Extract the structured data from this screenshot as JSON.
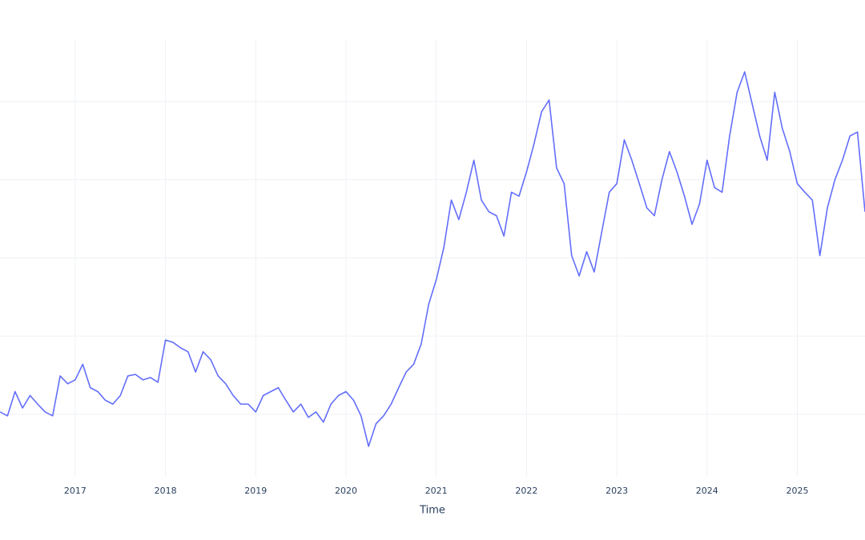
{
  "chart_data": {
    "type": "line",
    "x_label": "Time",
    "x": [
      "2016-03",
      "2016-04",
      "2016-05",
      "2016-06",
      "2016-07",
      "2016-08",
      "2016-09",
      "2016-10",
      "2016-11",
      "2016-12",
      "2017-01",
      "2017-02",
      "2017-03",
      "2017-04",
      "2017-05",
      "2017-06",
      "2017-07",
      "2017-08",
      "2017-09",
      "2017-10",
      "2017-11",
      "2017-12",
      "2018-01",
      "2018-02",
      "2018-03",
      "2018-04",
      "2018-05",
      "2018-06",
      "2018-07",
      "2018-08",
      "2018-09",
      "2018-10",
      "2018-11",
      "2018-12",
      "2019-01",
      "2019-02",
      "2019-03",
      "2019-04",
      "2019-05",
      "2019-06",
      "2019-07",
      "2019-08",
      "2019-09",
      "2019-10",
      "2019-11",
      "2019-12",
      "2020-01",
      "2020-02",
      "2020-03",
      "2020-04",
      "2020-05",
      "2020-06",
      "2020-07",
      "2020-08",
      "2020-09",
      "2020-10",
      "2020-11",
      "2020-12",
      "2021-01",
      "2021-02",
      "2021-03",
      "2021-04",
      "2021-05",
      "2021-06",
      "2021-07",
      "2021-08",
      "2021-09",
      "2021-10",
      "2021-11",
      "2021-12",
      "2022-01",
      "2022-02",
      "2022-03",
      "2022-04",
      "2022-05",
      "2022-06",
      "2022-07",
      "2022-08",
      "2022-09",
      "2022-10",
      "2022-11",
      "2022-12",
      "2023-01",
      "2023-02",
      "2023-03",
      "2023-04",
      "2023-05",
      "2023-06",
      "2023-07",
      "2023-08",
      "2023-09",
      "2023-10",
      "2023-11",
      "2023-12",
      "2024-01",
      "2024-02",
      "2024-03",
      "2024-04",
      "2024-05",
      "2024-06",
      "2024-07",
      "2024-08",
      "2024-09",
      "2024-10",
      "2024-11",
      "2024-12",
      "2025-01",
      "2025-02",
      "2025-03",
      "2025-04",
      "2025-05",
      "2025-06",
      "2025-07",
      "2025-08",
      "2025-09",
      "2025-10"
    ],
    "series": [
      {
        "color": "#636efa",
        "values": [
          1.03,
          0.98,
          1.29,
          1.08,
          1.24,
          1.13,
          1.03,
          0.98,
          1.49,
          1.39,
          1.44,
          1.64,
          1.34,
          1.29,
          1.18,
          1.13,
          1.24,
          1.49,
          1.51,
          1.44,
          1.47,
          1.41,
          1.95,
          1.92,
          1.85,
          1.8,
          1.54,
          1.8,
          1.7,
          1.49,
          1.39,
          1.24,
          1.13,
          1.13,
          1.03,
          1.24,
          1.29,
          1.34,
          1.18,
          1.03,
          1.13,
          0.96,
          1.03,
          0.9,
          1.13,
          1.24,
          1.29,
          1.18,
          0.98,
          0.59,
          0.88,
          0.98,
          1.13,
          1.34,
          1.54,
          1.64,
          1.9,
          2.41,
          2.72,
          3.13,
          3.74,
          3.49,
          3.84,
          4.25,
          3.74,
          3.59,
          3.54,
          3.28,
          3.84,
          3.79,
          4.1,
          4.46,
          4.87,
          5.02,
          4.15,
          3.95,
          3.03,
          2.77,
          3.08,
          2.82,
          3.33,
          3.84,
          3.95,
          4.51,
          4.25,
          3.95,
          3.64,
          3.54,
          4.0,
          4.36,
          4.1,
          3.79,
          3.43,
          3.69,
          4.25,
          3.9,
          3.84,
          4.56,
          5.12,
          5.38,
          4.97,
          4.56,
          4.25,
          5.12,
          4.66,
          4.36,
          3.95,
          3.84,
          3.74,
          3.03,
          3.64,
          4.0,
          4.25,
          4.56,
          4.61,
          3.59
        ]
      }
    ],
    "xlim": [
      "2016-03",
      "2025-10"
    ],
    "xticks": [
      "2017",
      "2018",
      "2019",
      "2020",
      "2021",
      "2022",
      "2023",
      "2024",
      "2025"
    ],
    "ylim": [
      0.2,
      5.8
    ],
    "ygrid": [
      1,
      2,
      3,
      4,
      5
    ],
    "grid": true
  }
}
